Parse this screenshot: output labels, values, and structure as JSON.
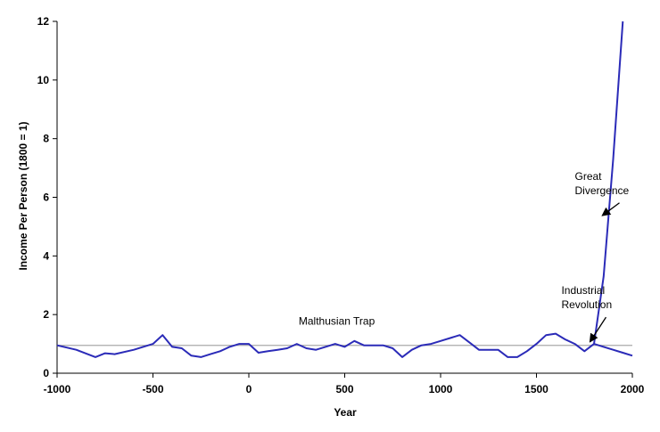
{
  "chart_data": {
    "type": "line",
    "title": "",
    "xlabel": "Year",
    "ylabel": "Income Per Person (1800 = 1)",
    "xlim": [
      -1000,
      2000
    ],
    "ylim": [
      0,
      12
    ],
    "x_ticks": [
      "-1000",
      "-500",
      "0",
      "500",
      "1000",
      "1500",
      "2000"
    ],
    "y_ticks": [
      "0",
      "2",
      "4",
      "6",
      "8",
      "10",
      "12"
    ],
    "grid": false,
    "legend": "none",
    "series": [
      {
        "color": "#2b2bb8",
        "x": [
          -1000,
          -900,
          -800,
          -750,
          -700,
          -600,
          -500,
          -450,
          -400,
          -350,
          -300,
          -250,
          -200,
          -150,
          -100,
          -50,
          0,
          50,
          100,
          150,
          200,
          250,
          300,
          350,
          400,
          450,
          500,
          550,
          600,
          650,
          700,
          750,
          800,
          850,
          900,
          950,
          1000,
          1050,
          1100,
          1150,
          1200,
          1250,
          1300,
          1350,
          1400,
          1450,
          1500,
          1550,
          1600,
          1650,
          1700,
          1750,
          1800,
          1850,
          1900,
          1950
        ],
        "y": [
          0.95,
          0.8,
          0.55,
          0.68,
          0.65,
          0.8,
          1.0,
          1.3,
          0.9,
          0.85,
          0.6,
          0.55,
          0.65,
          0.75,
          0.9,
          1.0,
          1.0,
          0.7,
          0.75,
          0.8,
          0.85,
          1.0,
          0.85,
          0.8,
          0.9,
          1.0,
          0.9,
          1.1,
          0.95,
          0.95,
          0.95,
          0.85,
          0.55,
          0.8,
          0.95,
          1.0,
          1.1,
          1.2,
          1.3,
          1.05,
          0.8,
          0.8,
          0.8,
          0.55,
          0.55,
          0.75,
          1.0,
          1.3,
          1.35,
          1.15,
          1.0,
          0.75,
          1.0,
          3.3,
          7.3,
          12.0
        ]
      },
      {
        "color": "#2b2bb8",
        "x": [
          1800,
          1850,
          1900,
          1950,
          2000
        ],
        "y": [
          1.0,
          0.9,
          0.8,
          0.7,
          0.6
        ]
      }
    ],
    "reference_line": {
      "y": 0.95,
      "color": "#aaaaaa"
    },
    "annotations": [
      {
        "text": "Malthusian Trap",
        "x": 260,
        "y": 1.65
      },
      {
        "lines": [
          "Industrial",
          "Revolution"
        ],
        "x": 1630,
        "y": 2.7,
        "arrow_to": [
          1795,
          1.0
        ]
      },
      {
        "lines": [
          "Great",
          "Divergence"
        ],
        "x": 1700,
        "y": 6.6,
        "arrow_to": [
          1860,
          5.3
        ]
      }
    ]
  }
}
